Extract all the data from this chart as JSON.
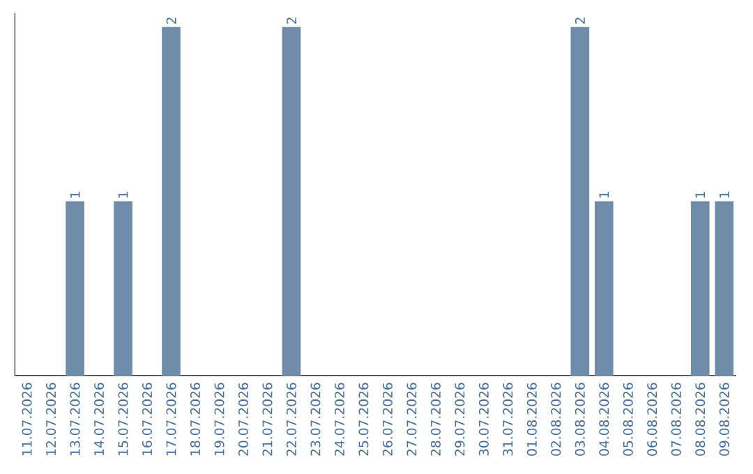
{
  "chart_data": {
    "type": "bar",
    "categories": [
      "11.07.2026",
      "12.07.2026",
      "13.07.2026",
      "14.07.2026",
      "15.07.2026",
      "16.07.2026",
      "17.07.2026",
      "18.07.2026",
      "19.07.2026",
      "20.07.2026",
      "21.07.2026",
      "22.07.2026",
      "23.07.2026",
      "24.07.2026",
      "25.07.2026",
      "26.07.2026",
      "27.07.2026",
      "28.07.2026",
      "29.07.2026",
      "30.07.2026",
      "31.07.2026",
      "01.08.2026",
      "02.08.2026",
      "03.08.2026",
      "04.08.2026",
      "05.08.2026",
      "06.08.2026",
      "07.08.2026",
      "08.08.2026",
      "09.08.2026"
    ],
    "values": [
      0,
      0,
      1,
      0,
      1,
      0,
      2,
      0,
      0,
      0,
      0,
      2,
      0,
      0,
      0,
      0,
      0,
      0,
      0,
      0,
      0,
      0,
      0,
      2,
      1,
      0,
      0,
      0,
      1,
      1
    ],
    "value_labels": [
      null,
      null,
      "1",
      null,
      "1",
      null,
      "2",
      null,
      null,
      null,
      null,
      "2",
      null,
      null,
      null,
      null,
      null,
      null,
      null,
      null,
      null,
      null,
      null,
      "2",
      "1",
      null,
      null,
      null,
      "1",
      "1"
    ],
    "color": "#6d8dab",
    "tick_labels": "x"
  }
}
